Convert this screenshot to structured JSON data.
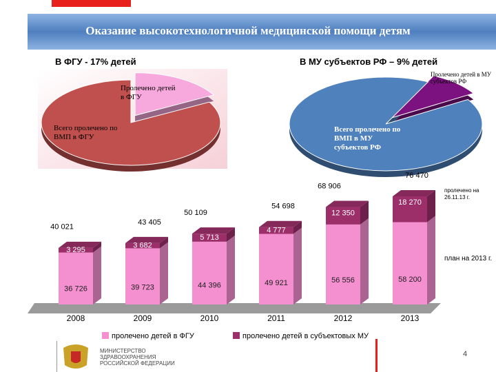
{
  "header": {
    "title": "Оказание высокотехнологичной медицинской помощи детям"
  },
  "chart_data": [
    {
      "type": "pie",
      "title": "В ФГУ - 17% детей",
      "categories": [
        "Пролечено детей в ФГУ",
        "Всего пролечено по ВМП в ФГУ"
      ],
      "values": [
        17,
        83
      ],
      "colors": [
        "#f7a8dc",
        "#c0504d"
      ]
    },
    {
      "type": "pie",
      "title": "В МУ субъектов РФ – 9% детей",
      "categories": [
        "Пролечено детей в МУ субъектов РФ",
        "Всего пролечено по ВМП в МУ субъектов РФ"
      ],
      "values": [
        9,
        91
      ],
      "colors": [
        "#7b1280",
        "#4f81bd"
      ]
    },
    {
      "type": "bar",
      "stacked": true,
      "categories": [
        "2008",
        "2009",
        "2010",
        "2011",
        "2012",
        "2013"
      ],
      "series": [
        {
          "name": "пролечено детей в ФГУ",
          "color": "#f48fd0",
          "values": [
            36726,
            39723,
            44396,
            49921,
            56556,
            58200
          ],
          "value_labels": [
            "36 726",
            "39 723",
            "44 396",
            "49 921",
            "56 556",
            "58 200"
          ]
        },
        {
          "name": "пролечено детей в субъектовых МУ",
          "color": "#9c2f6a",
          "values": [
            3295,
            3682,
            5713,
            4777,
            12350,
            18270
          ],
          "value_labels": [
            "3 295",
            "3 682",
            "5 713",
            "4 777",
            "12 350",
            "18 270"
          ]
        }
      ],
      "totals": [
        40021,
        43405,
        50109,
        54698,
        68906,
        76470
      ],
      "totals_labels": [
        "40 021",
        "43 405",
        "50 109",
        "54 698",
        "68 906",
        "76 470"
      ],
      "annotations": [
        "пролечено на 26.11.13 г.",
        "план на 2013 г."
      ]
    }
  ],
  "footer": {
    "organization": [
      "МИНИСТЕРСТВО",
      "ЗДРАВООХРАНЕНИЯ",
      "РОССИЙСКОЙ ФЕДЕРАЦИИ"
    ],
    "page": 4
  }
}
